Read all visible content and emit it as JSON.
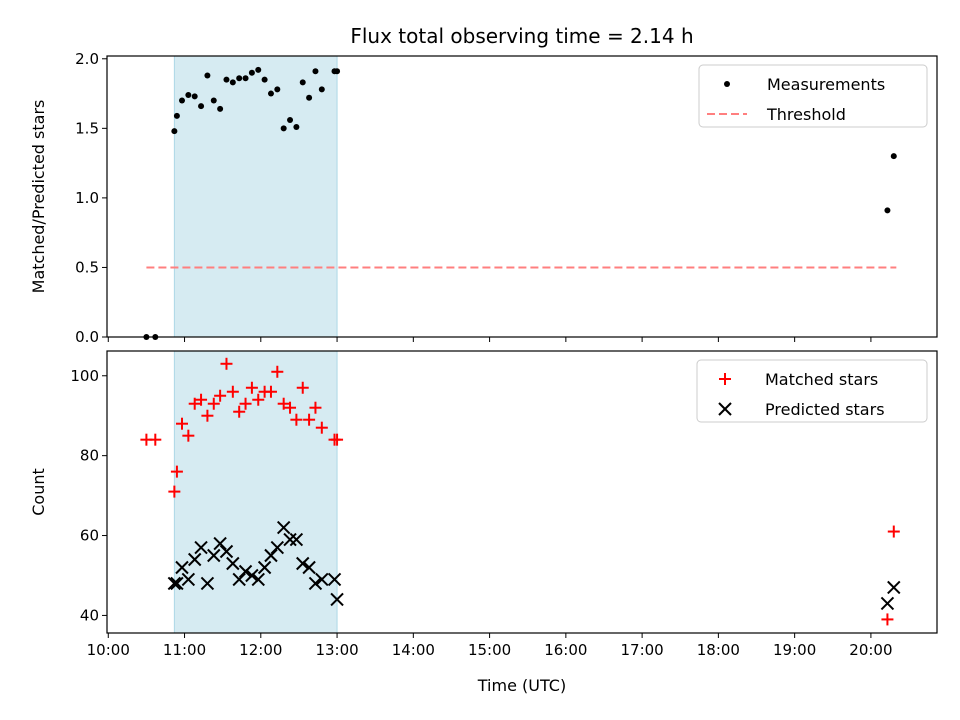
{
  "chart_data": {
    "type": "scatter",
    "title": "Flux total observing time = 2.14 h",
    "colors": {
      "measurements": "#000000",
      "threshold": "#ff7f7f",
      "matched": "#ff0000",
      "predicted": "#000000",
      "shade": "#add8e6"
    },
    "x_axis": {
      "label": "Time (UTC)",
      "range": [
        "09:59",
        "20:52"
      ],
      "ticks": [
        "10:00",
        "11:00",
        "12:00",
        "13:00",
        "14:00",
        "15:00",
        "16:00",
        "17:00",
        "18:00",
        "19:00",
        "20:00"
      ]
    },
    "shaded_interval": [
      "10:52",
      "13:00"
    ],
    "panels": [
      {
        "ylabel": "Matched/Predicted stars",
        "ylim": [
          0,
          2.02
        ],
        "yticks": [
          "0.0",
          "0.5",
          "1.0",
          "1.5",
          "2.0"
        ],
        "legend": {
          "placement": "upper right",
          "entries": [
            "Measurements",
            "Threshold"
          ]
        },
        "series": [
          {
            "name": "Measurements",
            "marker": "dot",
            "x": [
              "10:30",
              "10:37",
              "10:52",
              "10:54",
              "10:58",
              "11:03",
              "11:08",
              "11:13",
              "11:18",
              "11:23",
              "11:28",
              "11:33",
              "11:38",
              "11:43",
              "11:48",
              "11:53",
              "11:58",
              "12:03",
              "12:08",
              "12:13",
              "12:18",
              "12:23",
              "12:28",
              "12:33",
              "12:38",
              "12:43",
              "12:48",
              "12:58",
              "13:00",
              "20:13",
              "20:18"
            ],
            "y": [
              0,
              0,
              1.48,
              1.59,
              1.7,
              1.74,
              1.73,
              1.66,
              1.88,
              1.7,
              1.64,
              1.85,
              1.83,
              1.86,
              1.86,
              1.9,
              1.92,
              1.85,
              1.75,
              1.78,
              1.5,
              1.56,
              1.51,
              1.83,
              1.72,
              1.91,
              1.78,
              1.91,
              1.91,
              0.91,
              1.3
            ]
          },
          {
            "name": "Threshold",
            "marker": "dashed-line",
            "x": [
              "10:30",
              "20:20"
            ],
            "y": [
              0.5,
              0.5
            ]
          }
        ]
      },
      {
        "ylabel": "Count",
        "ylim": [
          35.6,
          106.2
        ],
        "yticks": [
          "40",
          "60",
          "80",
          "100"
        ],
        "legend": {
          "placement": "upper right",
          "entries": [
            "Matched stars",
            "Predicted stars"
          ]
        },
        "series": [
          {
            "name": "Matched stars",
            "marker": "plus",
            "x": [
              "10:30",
              "10:37",
              "10:52",
              "10:54",
              "10:58",
              "11:03",
              "11:08",
              "11:13",
              "11:18",
              "11:23",
              "11:28",
              "11:33",
              "11:38",
              "11:43",
              "11:48",
              "11:53",
              "11:58",
              "12:03",
              "12:08",
              "12:13",
              "12:18",
              "12:23",
              "12:28",
              "12:33",
              "12:38",
              "12:43",
              "12:48",
              "12:58",
              "13:00",
              "20:13",
              "20:18"
            ],
            "y": [
              84,
              84,
              71,
              76,
              88,
              85,
              93,
              94,
              90,
              93,
              95,
              103,
              96,
              91,
              93,
              97,
              94,
              96,
              96,
              101,
              93,
              92,
              89,
              97,
              89,
              92,
              87,
              84,
              84,
              39,
              61
            ]
          },
          {
            "name": "Predicted stars",
            "marker": "x",
            "x": [
              "10:52",
              "10:54",
              "10:58",
              "11:03",
              "11:08",
              "11:13",
              "11:18",
              "11:23",
              "11:28",
              "11:33",
              "11:38",
              "11:43",
              "11:48",
              "11:53",
              "11:58",
              "12:03",
              "12:08",
              "12:13",
              "12:18",
              "12:23",
              "12:28",
              "12:33",
              "12:38",
              "12:43",
              "12:48",
              "12:58",
              "13:00",
              "20:13",
              "20:18"
            ],
            "y": [
              48,
              48,
              52,
              49,
              54,
              57,
              48,
              55,
              58,
              56,
              53,
              49,
              51,
              50,
              49,
              52,
              55,
              57,
              62,
              59,
              59,
              53,
              52,
              48,
              49,
              49,
              44,
              43,
              47
            ]
          }
        ]
      }
    ]
  }
}
